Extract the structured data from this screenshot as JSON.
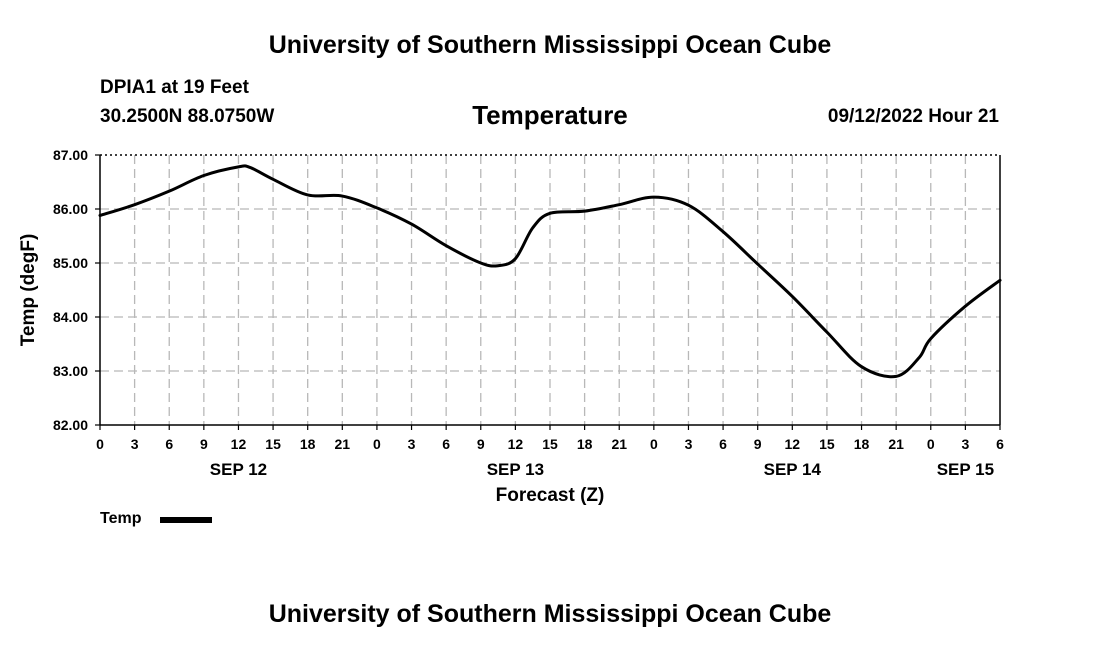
{
  "header": {
    "title": "University of Southern Mississippi Ocean Cube",
    "station": "DPIA1 at 19 Feet",
    "coordinates": "30.2500N  88.0750W",
    "chart_title": "Temperature",
    "datetime": "09/12/2022 Hour 21"
  },
  "footer": {
    "title": "University of Southern Mississippi Ocean Cube"
  },
  "legend": {
    "label": "Temp",
    "color": "#000000"
  },
  "chart_data": {
    "type": "line",
    "title": "Temperature",
    "xlabel": "Forecast (Z)",
    "ylabel": "Temp (degF)",
    "ylim": [
      82.0,
      87.0
    ],
    "yticks": [
      "82.00",
      "83.00",
      "84.00",
      "85.00",
      "86.00",
      "87.00"
    ],
    "x_hours_range": [
      0,
      78
    ],
    "x_tick_step_hours": 3,
    "x_tick_labels": [
      "0",
      "3",
      "6",
      "9",
      "12",
      "15",
      "18",
      "21",
      "0",
      "3",
      "6",
      "9",
      "12",
      "15",
      "18",
      "21",
      "0",
      "3",
      "6",
      "9",
      "12",
      "15",
      "18",
      "21",
      "0",
      "3",
      "6"
    ],
    "date_labels": [
      {
        "label": "SEP 12",
        "hour": 12
      },
      {
        "label": "SEP 13",
        "hour": 36
      },
      {
        "label": "SEP 14",
        "hour": 60
      },
      {
        "label": "SEP 15",
        "hour": 75
      }
    ],
    "grid": true,
    "series": [
      {
        "name": "Temp",
        "x": [
          0,
          3,
          6,
          9,
          12,
          13,
          15,
          18,
          21,
          24,
          27,
          30,
          33,
          34.5,
          36,
          37.5,
          39,
          42,
          45,
          48,
          51,
          54,
          57,
          60,
          63,
          66,
          69,
          71,
          72,
          75,
          78
        ],
        "values": [
          85.88,
          86.08,
          86.33,
          86.62,
          86.78,
          86.77,
          86.55,
          86.26,
          86.24,
          86.02,
          85.72,
          85.32,
          85.0,
          84.95,
          85.08,
          85.65,
          85.92,
          85.96,
          86.08,
          86.22,
          86.07,
          85.58,
          84.98,
          84.38,
          83.72,
          83.08,
          82.9,
          83.25,
          83.6,
          84.2,
          84.68
        ]
      }
    ]
  }
}
